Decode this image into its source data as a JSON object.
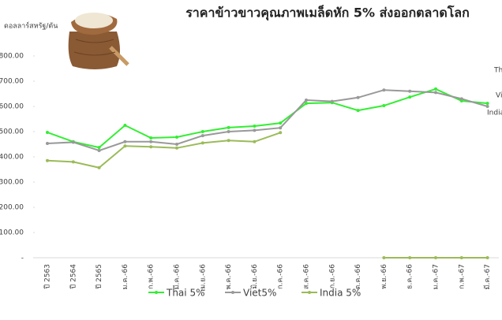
{
  "chart_data": {
    "type": "line",
    "title": "ราคาข้าวขาวคุณภาพเมล็ดหัก 5% ส่งออกตลาดโลก",
    "y_label": "ดอลลาร์สหรัฐ/ตัน",
    "categories": [
      "ปี 2563",
      "ปี 2564",
      "ปี 2565",
      "ม.ค.-66",
      "ก.พ.-66",
      "มี.ค.-66",
      "เม.ย.-66",
      "พ.ค.-66",
      "มิ.ย.-66",
      "ก.ค.-66",
      "ส.ค.-66",
      "ก.ย.-66",
      "ต.ค.-66",
      "พ.ย.-66",
      "ธ.ค.-66",
      "ม.ค.-67",
      "ก.พ.-67",
      "มี.ค.-67"
    ],
    "series": [
      {
        "name": "Thai 5%",
        "color": "#33ee33",
        "values": [
          497,
          460,
          437,
          525,
          475,
          478,
          500,
          516,
          522,
          534,
          612,
          615,
          584,
          603,
          637,
          669,
          622,
          612
        ]
      },
      {
        "name": "Viet5%",
        "color": "#999999",
        "values": [
          453,
          458,
          425,
          460,
          460,
          450,
          484,
          500,
          505,
          515,
          625,
          620,
          635,
          665,
          660,
          655,
          630,
          600
        ]
      },
      {
        "name": "India 5%",
        "color": "#9bbb59",
        "values": [
          385,
          380,
          357,
          443,
          440,
          435,
          455,
          465,
          460,
          496,
          null,
          null,
          null,
          0,
          0,
          0,
          0,
          0
        ]
      }
    ],
    "ylim": [
      0,
      800
    ],
    "yticks": [
      {
        "value": 0,
        "label": "-"
      },
      {
        "value": 100,
        "label": "100.00"
      },
      {
        "value": 200,
        "label": "200.00"
      },
      {
        "value": 300,
        "label": "300.00"
      },
      {
        "value": 400,
        "label": "400.00"
      },
      {
        "value": 500,
        "label": "500.00"
      },
      {
        "value": 600,
        "label": "600.00"
      },
      {
        "value": 700,
        "label": "700.00"
      },
      {
        "value": 800,
        "label": "800.00"
      }
    ],
    "grid": false,
    "legend": "bottom"
  }
}
